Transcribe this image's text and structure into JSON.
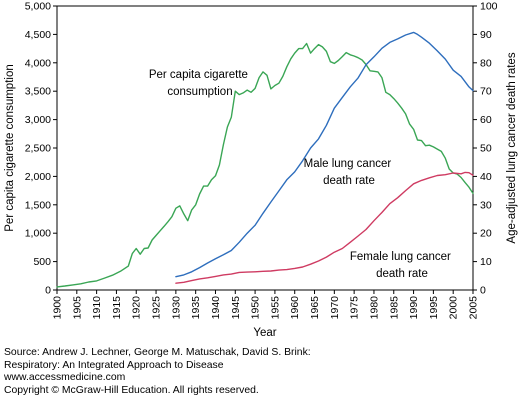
{
  "chart_data": {
    "type": "line",
    "title": "",
    "xlabel": "Year",
    "ylabel_left": "Per capita cigarette consumption",
    "ylabel_right": "Age-adjusted lung cancer death rates",
    "xlim": [
      1900,
      2005
    ],
    "ylim_left": [
      0,
      5000
    ],
    "ylim_right": [
      0,
      100
    ],
    "x_ticks": [
      "1900",
      "1905",
      "1910",
      "1915",
      "1920",
      "1925",
      "1930",
      "1935",
      "1940",
      "1945",
      "1950",
      "1955",
      "1960",
      "1965",
      "1970",
      "1975",
      "1980",
      "1985",
      "1990",
      "1995",
      "2000",
      "2005"
    ],
    "y_ticks_left": [
      "0",
      "500",
      "1,000",
      "1,500",
      "2,000",
      "2,500",
      "3,000",
      "3,500",
      "4,000",
      "4,500",
      "5,000"
    ],
    "y_ticks_right": [
      "0",
      "10",
      "20",
      "30",
      "40",
      "50",
      "60",
      "70",
      "80",
      "90",
      "100"
    ],
    "grid": false,
    "series": [
      {
        "name": "Per capita cigarette consumption",
        "axis": "left",
        "color": "#3aa655",
        "x": [
          1900,
          1902,
          1904,
          1906,
          1908,
          1910,
          1912,
          1914,
          1916,
          1918,
          1919,
          1920,
          1921,
          1922,
          1923,
          1924,
          1925,
          1926,
          1927,
          1928,
          1929,
          1930,
          1931,
          1932,
          1933,
          1934,
          1935,
          1936,
          1937,
          1938,
          1939,
          1940,
          1941,
          1942,
          1943,
          1944,
          1945,
          1946,
          1947,
          1948,
          1949,
          1950,
          1951,
          1952,
          1953,
          1954,
          1955,
          1956,
          1957,
          1958,
          1959,
          1960,
          1961,
          1962,
          1963,
          1964,
          1965,
          1966,
          1967,
          1968,
          1969,
          1970,
          1971,
          1972,
          1973,
          1974,
          1975,
          1976,
          1977,
          1978,
          1979,
          1980,
          1981,
          1982,
          1983,
          1984,
          1985,
          1986,
          1987,
          1988,
          1989,
          1990,
          1991,
          1992,
          1993,
          1994,
          1995,
          1996,
          1997,
          1998,
          1999,
          2000,
          2001,
          2002,
          2003,
          2004,
          2005
        ],
        "values": [
          54,
          70,
          90,
          110,
          140,
          160,
          210,
          260,
          330,
          420,
          640,
          730,
          630,
          730,
          740,
          880,
          960,
          1040,
          1120,
          1200,
          1290,
          1440,
          1480,
          1340,
          1220,
          1410,
          1500,
          1690,
          1830,
          1830,
          1940,
          2010,
          2200,
          2560,
          2870,
          3040,
          3500,
          3440,
          3470,
          3520,
          3480,
          3550,
          3740,
          3840,
          3780,
          3540,
          3600,
          3640,
          3760,
          3930,
          4070,
          4170,
          4250,
          4250,
          4340,
          4170,
          4250,
          4320,
          4280,
          4200,
          4020,
          3990,
          4040,
          4110,
          4180,
          4140,
          4120,
          4090,
          4050,
          3970,
          3860,
          3850,
          3840,
          3740,
          3480,
          3440,
          3370,
          3290,
          3200,
          3100,
          2920,
          2830,
          2640,
          2630,
          2540,
          2550,
          2520,
          2480,
          2440,
          2320,
          2130,
          2060,
          2040,
          1980,
          1890,
          1810,
          1700
        ]
      },
      {
        "name": "Male lung cancer death rate",
        "axis": "right",
        "color": "#2e6ebd",
        "x": [
          1930,
          1932,
          1934,
          1936,
          1938,
          1940,
          1942,
          1944,
          1946,
          1948,
          1950,
          1952,
          1954,
          1956,
          1958,
          1960,
          1962,
          1964,
          1966,
          1968,
          1970,
          1972,
          1974,
          1976,
          1978,
          1980,
          1982,
          1984,
          1986,
          1988,
          1990,
          1991,
          1992,
          1994,
          1996,
          1998,
          2000,
          2002,
          2004,
          2005
        ],
        "values": [
          4.7,
          5.3,
          6.4,
          7.9,
          9.5,
          11.0,
          12.4,
          13.9,
          16.8,
          20.0,
          22.8,
          27.0,
          31.0,
          34.9,
          38.8,
          41.6,
          45.5,
          50.0,
          53.2,
          58.0,
          64.0,
          67.8,
          71.5,
          74.7,
          79.3,
          82.1,
          85.1,
          87.2,
          88.4,
          89.8,
          90.7,
          90.0,
          89.0,
          86.9,
          84.2,
          81.3,
          77.4,
          75.2,
          71.5,
          70.2
        ]
      },
      {
        "name": "Female lung cancer death rate",
        "axis": "right",
        "color": "#cf3b62",
        "x": [
          1930,
          1932,
          1934,
          1936,
          1938,
          1940,
          1942,
          1944,
          1946,
          1948,
          1950,
          1952,
          1954,
          1956,
          1958,
          1960,
          1962,
          1964,
          1966,
          1968,
          1970,
          1972,
          1974,
          1976,
          1978,
          1980,
          1982,
          1984,
          1986,
          1988,
          1990,
          1992,
          1994,
          1996,
          1998,
          2000,
          2002,
          2003,
          2004,
          2005
        ],
        "values": [
          2.4,
          2.7,
          3.3,
          3.9,
          4.3,
          4.8,
          5.3,
          5.6,
          6.2,
          6.3,
          6.4,
          6.6,
          6.7,
          7.0,
          7.2,
          7.6,
          8.1,
          9.1,
          10.2,
          11.6,
          13.3,
          14.6,
          16.8,
          19.0,
          21.3,
          24.4,
          27.3,
          30.4,
          32.5,
          35.0,
          37.4,
          38.6,
          39.5,
          40.3,
          40.6,
          41.2,
          40.9,
          41.4,
          41.3,
          40.4
        ]
      }
    ],
    "annotations": [
      {
        "lines": [
          "Per capita cigarette",
          "consumption"
        ]
      },
      {
        "lines": [
          "Male lung cancer",
          "death rate"
        ]
      },
      {
        "lines": [
          "Female lung cancer",
          "death rate"
        ]
      }
    ]
  },
  "source": {
    "lines": [
      "Source: Andrew J. Lechner, George M. Matuschak, David S. Brink:",
      "Respiratory: An Integrated Approach to Disease",
      "www.accessmedicine.com",
      "Copyright © McGraw-Hill Education.  All rights reserved."
    ]
  }
}
